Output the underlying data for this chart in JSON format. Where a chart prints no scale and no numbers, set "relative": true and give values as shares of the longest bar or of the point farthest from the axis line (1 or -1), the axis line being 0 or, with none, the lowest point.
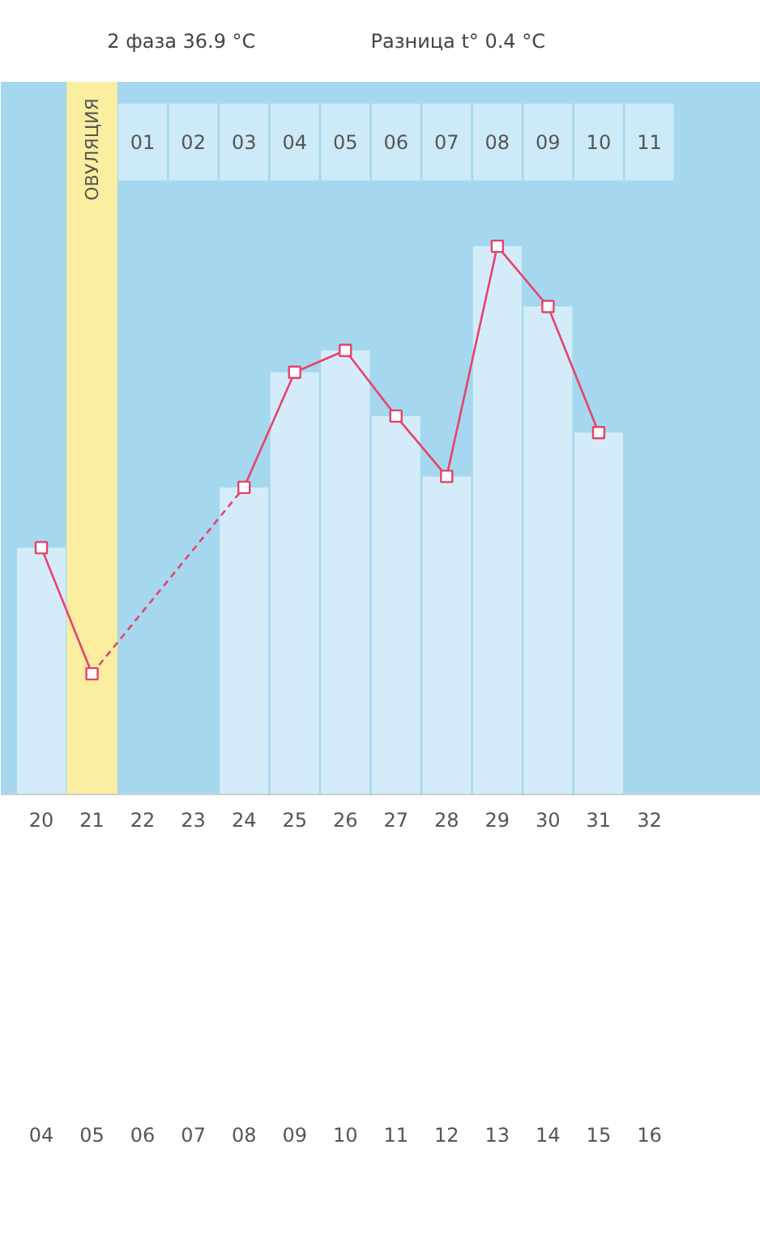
{
  "chart_data": {
    "type": "bar",
    "relative": true,
    "categories": [
      "20",
      "21",
      "22",
      "23",
      "24",
      "25",
      "26",
      "27",
      "28",
      "29",
      "30",
      "31",
      "32"
    ],
    "values": [
      0.45,
      null,
      null,
      null,
      0.56,
      0.77,
      0.81,
      0.69,
      0.58,
      1,
      0.89,
      0.66,
      null
    ],
    "color": "#d4ecf9",
    "series": [
      {
        "type": "line",
        "color": "#e8416b",
        "marker": "square",
        "line_style": "solid",
        "values": [
          0.45,
          0.22,
          null,
          null,
          0.56,
          0.77,
          0.81,
          0.69,
          0.58,
          1,
          0.89,
          0.66,
          null
        ]
      }
    ],
    "bands": [
      {
        "axis": "x",
        "from": "21",
        "to": "21",
        "label": "ОВУЛЯЦИЯ",
        "color": "#fbeea0"
      }
    ],
    "annotations": [
      "2 фаза  36.9 °C",
      "Разница t°  0.4 °C",
      "01",
      "02",
      "03",
      "04",
      "05",
      "06",
      "07",
      "08",
      "09",
      "10",
      "11",
      "04",
      "05",
      "06",
      "07",
      "08",
      "09",
      "10",
      "11",
      "12",
      "13",
      "14",
      "15",
      "16"
    ]
  }
}
